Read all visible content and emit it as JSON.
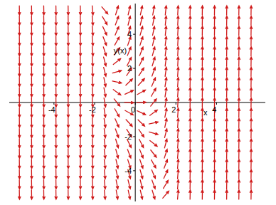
{
  "chart_data": {
    "type": "direction_field",
    "x_label": "x",
    "y_label": "y(x)",
    "color": "#d01818",
    "xlim": [
      -6.2,
      6.4
    ],
    "ylim": [
      -5.8,
      5.8
    ],
    "xticks": [
      -4,
      -2,
      0,
      2,
      4
    ],
    "yticks": [
      -4,
      -2,
      2,
      4
    ],
    "x": [
      -5.7,
      -5.1,
      -4.5,
      -3.9,
      -3.3,
      -2.7,
      -2.1,
      -1.5,
      -0.9,
      -0.3,
      0.3,
      0.9,
      1.5,
      2.1,
      2.7,
      3.3,
      3.9,
      4.5,
      5.1,
      5.7
    ],
    "y": [
      -5.4,
      -4.8,
      -4.2,
      -3.6,
      -3.0,
      -2.4,
      -1.8,
      -1.2,
      -0.6,
      0,
      0.6,
      1.2,
      1.8,
      2.4,
      3.0,
      3.6,
      4.2,
      4.8,
      5.4
    ],
    "angles": [
      [
        -89,
        -89,
        -89,
        -89,
        -89,
        -89,
        -87,
        -84,
        -80,
        -78,
        -77,
        -73,
        49,
        85,
        89,
        89,
        89,
        89,
        89,
        89
      ],
      [
        -89,
        -89,
        -89,
        -89,
        -89,
        -89,
        -87,
        -84,
        -79,
        -76,
        -76,
        -70,
        59,
        85,
        89,
        89,
        89,
        89,
        89,
        89
      ],
      [
        -89,
        -89,
        -89,
        -89,
        -89,
        -89,
        -87,
        -84,
        -78,
        -74,
        -74,
        -67,
        65,
        85,
        89,
        89,
        89,
        89,
        89,
        89
      ],
      [
        -89,
        -89,
        -89,
        -89,
        -89,
        -89,
        -87,
        -83,
        -77,
        -72,
        -71,
        -61,
        69,
        85,
        89,
        89,
        89,
        89,
        89,
        89
      ],
      [
        -89,
        -89,
        -89,
        -89,
        -89,
        -89,
        -87,
        -83,
        -75,
        -69,
        -68,
        -52,
        72,
        85,
        89,
        89,
        89,
        89,
        89,
        89
      ],
      [
        -89,
        -89,
        -89,
        -89,
        -89,
        -89,
        -87,
        -83,
        -73,
        -64,
        -63,
        -38,
        75,
        86,
        89,
        89,
        89,
        89,
        89,
        89
      ],
      [
        -89,
        -89,
        -89,
        -89,
        -89,
        -89,
        -86,
        -82,
        -70,
        -57,
        -56,
        -16,
        76,
        86,
        89,
        89,
        89,
        89,
        89,
        89
      ],
      [
        -89,
        -89,
        -89,
        -89,
        -89,
        -89,
        -86,
        -81,
        -66,
        -47,
        -44,
        12,
        78,
        86,
        89,
        89,
        89,
        89,
        89,
        89
      ],
      [
        -89,
        -89,
        -89,
        -89,
        -89,
        -89,
        -86,
        -81,
        -60,
        -29,
        -25,
        36,
        79,
        86,
        89,
        89,
        89,
        89,
        89,
        89
      ],
      [
        -89,
        -89,
        -89,
        -89,
        -89,
        -89,
        -86,
        -80,
        -51,
        -3,
        3,
        51,
        80,
        86,
        89,
        89,
        89,
        89,
        89,
        89
      ],
      [
        -89,
        -89,
        -89,
        -89,
        -89,
        -89,
        -86,
        -79,
        -36,
        25,
        29,
        60,
        81,
        86,
        89,
        89,
        89,
        89,
        89,
        89
      ],
      [
        -89,
        -89,
        -89,
        -89,
        -89,
        -89,
        -86,
        -78,
        -12,
        44,
        47,
        66,
        81,
        86,
        89,
        89,
        89,
        89,
        89,
        89
      ],
      [
        -89,
        -89,
        -89,
        -89,
        -89,
        -89,
        -86,
        -76,
        16,
        56,
        57,
        70,
        82,
        86,
        89,
        89,
        89,
        89,
        89,
        89
      ],
      [
        -89,
        -89,
        -89,
        -89,
        -89,
        -89,
        -86,
        -75,
        38,
        63,
        64,
        73,
        83,
        87,
        89,
        89,
        89,
        89,
        89,
        89
      ],
      [
        -89,
        -89,
        -89,
        -89,
        -89,
        -89,
        -85,
        -72,
        52,
        68,
        69,
        75,
        83,
        87,
        89,
        89,
        89,
        89,
        89,
        89
      ],
      [
        -89,
        -89,
        -89,
        -89,
        -89,
        -89,
        -85,
        -69,
        61,
        71,
        72,
        77,
        83,
        87,
        89,
        89,
        89,
        89,
        89,
        89
      ],
      [
        -89,
        -89,
        -89,
        -89,
        -89,
        -89,
        -85,
        -65,
        67,
        74,
        74,
        78,
        84,
        87,
        89,
        89,
        89,
        89,
        89,
        89
      ],
      [
        -89,
        -89,
        -89,
        -89,
        -89,
        -89,
        -85,
        -59,
        70,
        76,
        76,
        79,
        84,
        87,
        89,
        89,
        89,
        89,
        89,
        89
      ],
      [
        -89,
        -89,
        -89,
        -89,
        -89,
        -89,
        -85,
        -49,
        73,
        77,
        78,
        80,
        84,
        87,
        89,
        89,
        89,
        89,
        89,
        89
      ]
    ]
  }
}
